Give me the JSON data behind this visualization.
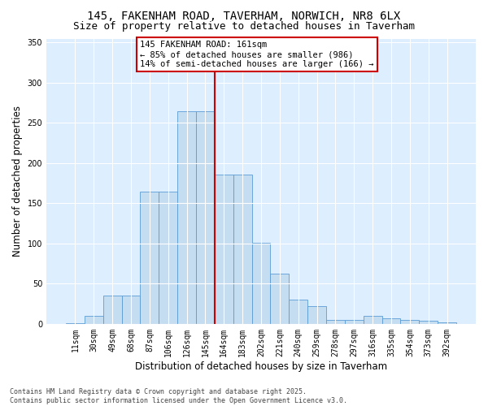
{
  "title": "145, FAKENHAM ROAD, TAVERHAM, NORWICH, NR8 6LX",
  "subtitle": "Size of property relative to detached houses in Taverham",
  "xlabel": "Distribution of detached houses by size in Taverham",
  "ylabel": "Number of detached properties",
  "categories": [
    "11sqm",
    "30sqm",
    "49sqm",
    "68sqm",
    "87sqm",
    "106sqm",
    "126sqm",
    "145sqm",
    "164sqm",
    "183sqm",
    "202sqm",
    "221sqm",
    "240sqm",
    "259sqm",
    "278sqm",
    "297sqm",
    "316sqm",
    "335sqm",
    "354sqm",
    "373sqm",
    "392sqm"
  ],
  "values": [
    1,
    10,
    35,
    35,
    165,
    165,
    265,
    265,
    186,
    186,
    101,
    62,
    30,
    22,
    5,
    5,
    10,
    7,
    5,
    4,
    2
  ],
  "bar_color": "#c5ddf0",
  "bar_edge_color": "#5b9bd5",
  "vline_color": "#cc0000",
  "annotation_text": "145 FAKENHAM ROAD: 161sqm\n← 85% of detached houses are smaller (986)\n14% of semi-detached houses are larger (166) →",
  "annotation_box_color": "#ffffff",
  "annotation_box_edge": "#cc0000",
  "bg_color": "#ddeeff",
  "grid_color": "#ffffff",
  "footer": "Contains HM Land Registry data © Crown copyright and database right 2025.\nContains public sector information licensed under the Open Government Licence v3.0.",
  "ylim": [
    0,
    355
  ],
  "yticks": [
    0,
    50,
    100,
    150,
    200,
    250,
    300,
    350
  ],
  "title_fontsize": 10,
  "subtitle_fontsize": 9,
  "xlabel_fontsize": 8.5,
  "ylabel_fontsize": 8.5,
  "tick_fontsize": 7,
  "ann_fontsize": 7.5,
  "footer_fontsize": 6
}
